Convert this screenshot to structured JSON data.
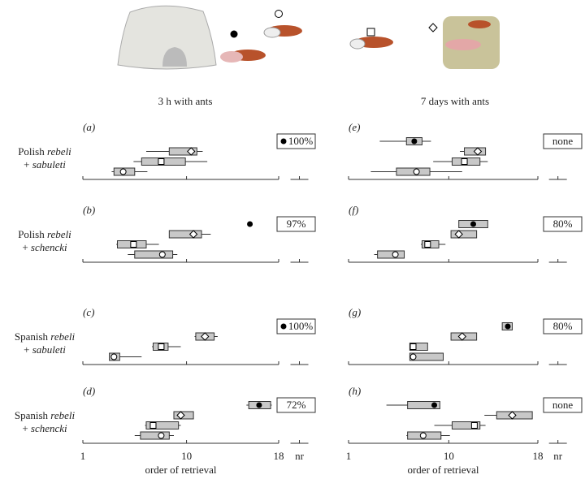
{
  "column_titles": [
    "3 h with ants",
    "7 days with ants"
  ],
  "row_labels": [
    {
      "line1": [
        "Polish",
        "rebeli"
      ],
      "line2": [
        "+",
        "sabuleti"
      ]
    },
    {
      "line1": [
        "Polish",
        "rebeli"
      ],
      "line2": [
        "+",
        "schencki"
      ]
    },
    {
      "line1": [
        "Spanish",
        "rebeli"
      ],
      "line2": [
        "+",
        "sabuleti"
      ]
    },
    {
      "line1": [
        "Spanish",
        "rebeli"
      ],
      "line2": [
        "+",
        "schencki"
      ]
    }
  ],
  "chart_data": [
    {
      "type": "box",
      "panel_label": "(a)",
      "xlim": [
        1,
        18
      ],
      "xticks": [
        1,
        10,
        18,
        {
          "value": 19.8,
          "label": "nr"
        }
      ],
      "show_tick_labels": false,
      "retention": {
        "text": "100%",
        "marker": "filled-circle"
      },
      "boxes": [
        {
          "marker": "diamond",
          "whislo": 6.5,
          "q1": 8.5,
          "med": 10.4,
          "q3": 10.9,
          "whishi": 11.4
        },
        {
          "marker": "square",
          "whislo": 5.4,
          "q1": 6.1,
          "med": 7.8,
          "q3": 9.9,
          "whishi": 11.8
        },
        {
          "marker": "open-circle",
          "whislo": 3.5,
          "q1": 3.7,
          "med": 4.5,
          "q3": 5.5,
          "whishi": 6.6
        }
      ]
    },
    {
      "type": "box",
      "panel_label": "(b)",
      "xlim": [
        1,
        18
      ],
      "xticks": [
        1,
        10,
        18,
        {
          "value": 19.8,
          "label": "nr"
        }
      ],
      "show_tick_labels": false,
      "retention": {
        "text": "97%",
        "marker": null
      },
      "boxes": [
        {
          "marker": "filled-circle",
          "whislo": 15.5,
          "q1": 15.5,
          "med": 15.5,
          "q3": 15.5,
          "whishi": 15.5
        },
        {
          "marker": "diamond",
          "whislo": 8.5,
          "q1": 8.5,
          "med": 10.6,
          "q3": 11.3,
          "whishi": 12.1
        },
        {
          "marker": "square",
          "whislo": 3.9,
          "q1": 4.0,
          "med": 5.4,
          "q3": 6.5,
          "whishi": 7.6
        },
        {
          "marker": "open-circle",
          "whislo": 4.9,
          "q1": 5.5,
          "med": 7.9,
          "q3": 8.8,
          "whishi": 9.2
        }
      ]
    },
    {
      "type": "box",
      "panel_label": "(c)",
      "xlim": [
        1,
        18
      ],
      "xticks": [
        1,
        10,
        18,
        {
          "value": 19.8,
          "label": "nr"
        }
      ],
      "show_tick_labels": false,
      "retention": {
        "text": "100%",
        "marker": "filled-circle"
      },
      "boxes": [
        {
          "marker": "diamond",
          "whislo": 10.7,
          "q1": 10.8,
          "med": 11.6,
          "q3": 12.4,
          "whishi": 12.7
        },
        {
          "marker": "square",
          "whislo": 7.0,
          "q1": 7.1,
          "med": 7.8,
          "q3": 8.4,
          "whishi": 9.5
        },
        {
          "marker": "open-circle",
          "whislo": 3.3,
          "q1": 3.3,
          "med": 3.7,
          "q3": 4.2,
          "whishi": 6.1
        }
      ]
    },
    {
      "type": "box",
      "panel_label": "(d)",
      "xlim": [
        1,
        18
      ],
      "xticks": [
        1,
        10,
        18,
        {
          "value": 19.8,
          "label": "nr"
        }
      ],
      "show_tick_labels": true,
      "xlabel": "order of retrieval",
      "retention": {
        "text": "72%",
        "marker": null
      },
      "boxes": [
        {
          "marker": "filled-circle",
          "whislo": 15.2,
          "q1": 15.4,
          "med": 16.3,
          "q3": 17.3,
          "whishi": 17.4
        },
        {
          "marker": "diamond",
          "whislo": 8.9,
          "q1": 8.9,
          "med": 9.5,
          "q3": 10.6,
          "whishi": 10.6
        },
        {
          "marker": "square",
          "whislo": 6.4,
          "q1": 6.5,
          "med": 7.1,
          "q3": 9.3,
          "whishi": 9.5
        },
        {
          "marker": "open-circle",
          "whislo": 5.5,
          "q1": 6.0,
          "med": 7.8,
          "q3": 8.5,
          "whishi": 8.9
        }
      ]
    },
    {
      "type": "box",
      "panel_label": "(e)",
      "xlim": [
        1,
        18
      ],
      "xticks": [
        1,
        10,
        18,
        {
          "value": 19.8,
          "label": "nr"
        }
      ],
      "show_tick_labels": false,
      "retention": {
        "text": "none",
        "marker": null
      },
      "boxes": [
        {
          "marker": "filled-circle",
          "whislo": 3.8,
          "q1": 6.2,
          "med": 6.9,
          "q3": 7.6,
          "whishi": 8.4
        },
        {
          "marker": "diamond",
          "whislo": 11.0,
          "q1": 11.4,
          "med": 12.6,
          "q3": 13.3,
          "whishi": 13.3
        },
        {
          "marker": "square",
          "whislo": 8.6,
          "q1": 10.3,
          "med": 11.4,
          "q3": 12.8,
          "whishi": 13.5
        },
        {
          "marker": "open-circle",
          "whislo": 3.0,
          "q1": 5.3,
          "med": 7.1,
          "q3": 8.3,
          "whishi": 11.2
        }
      ]
    },
    {
      "type": "box",
      "panel_label": "(f)",
      "xlim": [
        1,
        18
      ],
      "xticks": [
        1,
        10,
        18,
        {
          "value": 19.8,
          "label": "nr"
        }
      ],
      "show_tick_labels": false,
      "retention": {
        "text": "80%",
        "marker": null
      },
      "boxes": [
        {
          "marker": "filled-circle",
          "whislo": 10.9,
          "q1": 10.9,
          "med": 12.2,
          "q3": 13.5,
          "whishi": 13.5
        },
        {
          "marker": "diamond",
          "whislo": 10.2,
          "q1": 10.2,
          "med": 10.9,
          "q3": 12.5,
          "whishi": 12.5
        },
        {
          "marker": "square",
          "whislo": 7.5,
          "q1": 7.6,
          "med": 8.1,
          "q3": 9.1,
          "whishi": 9.7
        },
        {
          "marker": "open-circle",
          "whislo": 3.3,
          "q1": 3.6,
          "med": 5.2,
          "q3": 6.0,
          "whishi": 6.0
        }
      ]
    },
    {
      "type": "box",
      "panel_label": "(g)",
      "xlim": [
        1,
        18
      ],
      "xticks": [
        1,
        10,
        18,
        {
          "value": 19.8,
          "label": "nr"
        }
      ],
      "show_tick_labels": false,
      "retention": {
        "text": "80%",
        "marker": null
      },
      "boxes": [
        {
          "marker": "filled-circle",
          "whislo": 14.8,
          "q1": 14.8,
          "med": 15.3,
          "q3": 15.7,
          "whishi": 15.7
        },
        {
          "marker": "diamond",
          "whislo": 10.2,
          "q1": 10.2,
          "med": 11.2,
          "q3": 12.5,
          "whishi": 12.5
        },
        {
          "marker": "square",
          "whislo": 6.5,
          "q1": 6.5,
          "med": 6.8,
          "q3": 8.1,
          "whishi": 8.1
        },
        {
          "marker": "open-circle",
          "whislo": 6.5,
          "q1": 6.5,
          "med": 6.8,
          "q3": 9.5,
          "whishi": 9.5
        }
      ]
    },
    {
      "type": "box",
      "panel_label": "(h)",
      "xlim": [
        1,
        18
      ],
      "xticks": [
        1,
        10,
        18,
        {
          "value": 19.8,
          "label": "nr"
        }
      ],
      "show_tick_labels": true,
      "xlabel": "order of retrieval",
      "retention": {
        "text": "none",
        "marker": null
      },
      "boxes": [
        {
          "marker": "filled-circle",
          "whislo": 4.4,
          "q1": 6.3,
          "med": 8.7,
          "q3": 9.2,
          "whishi": 9.2
        },
        {
          "marker": "diamond",
          "whislo": 13.2,
          "q1": 14.3,
          "med": 15.7,
          "q3": 17.5,
          "whishi": 17.5
        },
        {
          "marker": "square",
          "whislo": 8.7,
          "q1": 10.3,
          "med": 12.3,
          "q3": 12.8,
          "whishi": 13.3
        },
        {
          "marker": "open-circle",
          "whislo": 6.2,
          "q1": 6.3,
          "med": 7.7,
          "q3": 9.3,
          "whishi": 10.1
        }
      ]
    }
  ]
}
